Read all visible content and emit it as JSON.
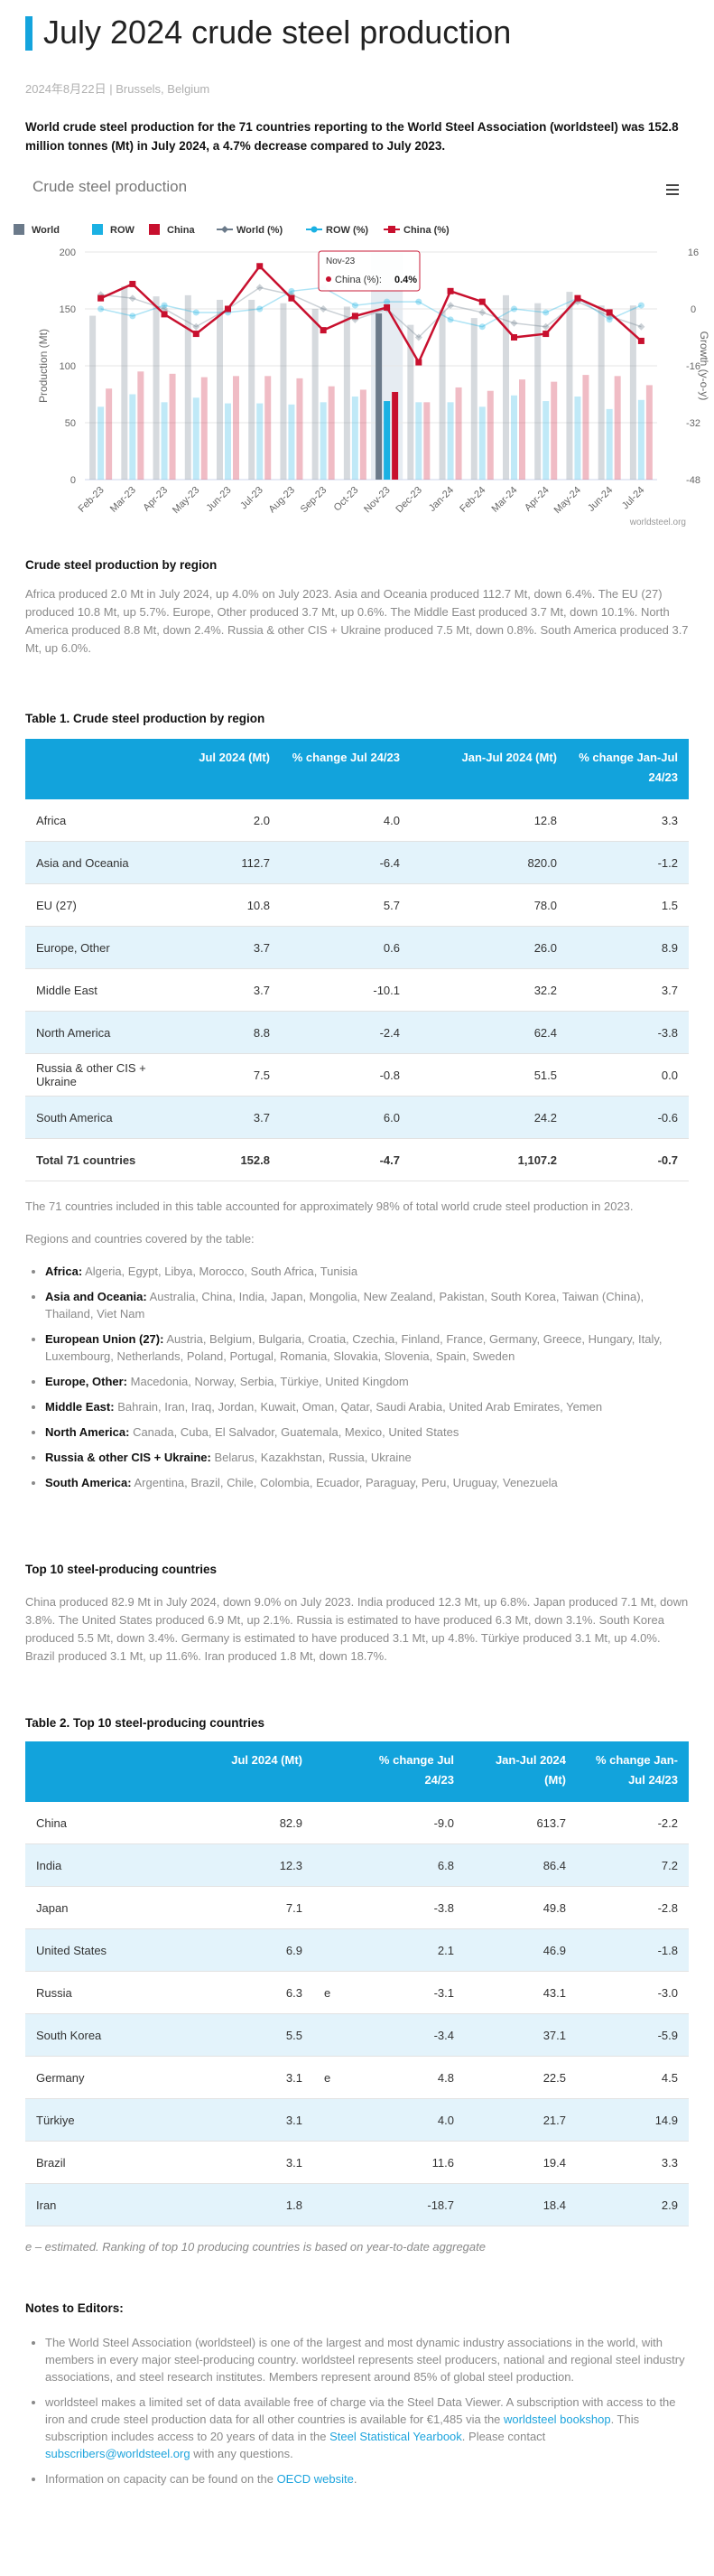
{
  "header": {
    "title": "July 2024 crude steel production",
    "dateline": "2024年8月22日 | Brussels, Belgium"
  },
  "lead": "World crude steel production for the 71 countries reporting to the World Steel Association (worldsteel) was 152.8 million tonnes (Mt) in July 2024, a 4.7% decrease compared to July 2023.",
  "chart_data": {
    "type": "bar",
    "title": "Crude steel production",
    "y_label": "Production (Mt)",
    "y2_label": "Growth (y-o-y)",
    "credit": "worldsteel.org",
    "grid": true,
    "categories": [
      "Feb-23",
      "Mar-23",
      "Apr-23",
      "May-23",
      "Jun-23",
      "Jul-23",
      "Aug-23",
      "Sep-23",
      "Oct-23",
      "Nov-23",
      "Dec-23",
      "Jan-24",
      "Feb-24",
      "Mar-24",
      "Apr-24",
      "May-24",
      "Jun-24",
      "Jul-24"
    ],
    "ylim": [
      0,
      200
    ],
    "yticks": [
      0,
      50,
      100,
      150,
      200
    ],
    "y2lim": [
      -48,
      16
    ],
    "y2ticks": [
      16,
      0,
      -16,
      -32,
      -48
    ],
    "series": [
      {
        "name": "World",
        "type": "bar",
        "color": "#6b7a8a",
        "values": [
          144,
          170,
          161,
          162,
          158,
          158,
          155,
          150,
          152,
          146,
          136,
          149,
          142,
          162,
          155,
          165,
          153,
          153
        ]
      },
      {
        "name": "ROW",
        "type": "bar",
        "color": "#1bb1e3",
        "values": [
          64,
          75,
          68,
          72,
          67,
          67,
          66,
          68,
          73,
          69,
          68,
          68,
          64,
          74,
          69,
          73,
          62,
          70
        ]
      },
      {
        "name": "China",
        "type": "bar",
        "color": "#c8102e",
        "values": [
          80,
          95,
          93,
          90,
          91,
          91,
          89,
          82,
          79,
          77,
          68,
          81,
          78,
          88,
          86,
          92,
          91,
          83
        ]
      },
      {
        "name": "World (%)",
        "type": "line",
        "axis": "y2",
        "marker": "diamond",
        "color": "#6b7a8a",
        "values": [
          4,
          3,
          0,
          -5,
          0,
          6,
          4,
          0,
          -3,
          0,
          -8,
          1,
          -1,
          -4,
          -5,
          2,
          -2,
          -5
        ]
      },
      {
        "name": "ROW (%)",
        "type": "line",
        "axis": "y2",
        "marker": "circle",
        "color": "#1bb1e3",
        "values": [
          0,
          -2,
          1,
          -1,
          -1,
          0,
          5,
          6,
          1,
          2,
          2,
          -3,
          -5,
          0,
          -1,
          3,
          -3,
          1
        ]
      },
      {
        "name": "China (%)",
        "type": "line",
        "axis": "y2",
        "marker": "square",
        "color": "#c8102e",
        "values": [
          3,
          7,
          -1.5,
          -7,
          0,
          12,
          3,
          -6,
          -2,
          0.4,
          -15,
          5,
          2,
          -8,
          -7,
          3,
          -1,
          -9
        ]
      }
    ],
    "tooltip": {
      "category": "Nov-23",
      "series": "China (%):",
      "value": "0.4%"
    }
  },
  "region_heading": "Crude steel production by region",
  "region_text": "Africa produced 2.0 Mt in July 2024, up 4.0% on July 2023. Asia and Oceania produced 112.7 Mt, down 6.4%. The EU (27) produced 10.8 Mt, up 5.7%. Europe, Other produced 3.7 Mt, up 0.6%. The Middle East produced 3.7 Mt, down 10.1%. North America produced 8.8 Mt, down 2.4%. Russia & other CIS + Ukraine produced 7.5 Mt, down 0.8%. South America produced 3.7 Mt, up 6.0%.",
  "table1": {
    "title": "Table 1. Crude steel production by region",
    "columns": [
      "Jul 2024 (Mt)",
      "% change Jul 24/23",
      "Jan-Jul 2024 (Mt)",
      "% change Jan-Jul 24/23"
    ],
    "rows": [
      [
        "Africa",
        "2.0",
        "4.0",
        "12.8",
        "3.3"
      ],
      [
        "Asia and Oceania",
        "112.7",
        "-6.4",
        "820.0",
        "-1.2"
      ],
      [
        "EU (27)",
        "10.8",
        "5.7",
        "78.0",
        "1.5"
      ],
      [
        "Europe, Other",
        "3.7",
        "0.6",
        "26.0",
        "8.9"
      ],
      [
        "Middle East",
        "3.7",
        "-10.1",
        "32.2",
        "3.7"
      ],
      [
        "North America",
        "8.8",
        "-2.4",
        "62.4",
        "-3.8"
      ],
      [
        "Russia & other CIS + Ukraine",
        "7.5",
        "-0.8",
        "51.5",
        "0.0"
      ],
      [
        "South America",
        "3.7",
        "6.0",
        "24.2",
        "-0.6"
      ],
      [
        "Total 71 countries",
        "152.8",
        "-4.7",
        "1,107.2",
        "-0.7"
      ]
    ]
  },
  "coverage_text": "The 71 countries included in this table accounted for approximately 98% of total world crude steel production in 2023.",
  "regions_intro": "Regions and countries covered by the table:",
  "regions": [
    {
      "name": "Africa:",
      "text": "Algeria, Egypt, Libya, Morocco, South Africa, Tunisia"
    },
    {
      "name": "Asia and Oceania:",
      "text": "Australia, China, India, Japan, Mongolia, New Zealand, Pakistan, South Korea, Taiwan (China), Thailand, Viet Nam"
    },
    {
      "name": "European Union (27):",
      "text": "Austria, Belgium, Bulgaria, Croatia, Czechia, Finland, France, Germany, Greece, Hungary, Italy, Luxembourg, Netherlands, Poland, Portugal, Romania, Slovakia, Slovenia, Spain, Sweden"
    },
    {
      "name": "Europe, Other:",
      "text": "Macedonia, Norway, Serbia, Türkiye, United Kingdom"
    },
    {
      "name": "Middle East:",
      "text": "Bahrain, Iran, Iraq, Jordan, Kuwait, Oman, Qatar, Saudi Arabia, United Arab Emirates, Yemen"
    },
    {
      "name": "North America:",
      "text": "Canada, Cuba, El Salvador, Guatemala, Mexico, United States"
    },
    {
      "name": "Russia & other CIS + Ukraine:",
      "text": "Belarus, Kazakhstan, Russia, Ukraine"
    },
    {
      "name": "South America:",
      "text": "Argentina, Brazil, Chile, Colombia, Ecuador, Paraguay, Peru, Uruguay, Venezuela"
    }
  ],
  "top10_heading": "Top 10 steel-producing countries",
  "top10_text": "China produced 82.9 Mt in July 2024, down 9.0% on July 2023. India produced 12.3 Mt, up 6.8%. Japan produced 7.1 Mt, down 3.8%. The United States produced 6.9 Mt, up 2.1%. Russia is estimated to have produced 6.3 Mt, down 3.1%. South Korea produced 5.5 Mt, down 3.4%. Germany is estimated to have produced 3.1 Mt, up 4.8%. Türkiye produced 3.1 Mt, up 4.0%. Brazil produced 3.1 Mt, up 11.6%. Iran produced 1.8 Mt, down 18.7%.",
  "table2": {
    "title": "Table 2. Top 10 steel-producing countries",
    "columns": [
      "Jul 2024 (Mt)",
      "% change Jul 24/23",
      "Jan-Jul 2024 (Mt)",
      "% change Jan-Jul 24/23"
    ],
    "rows": [
      {
        "country": "China",
        "jul": "82.9",
        "change": "-9.0",
        "ytd": "613.7",
        "ytd_change": "-2.2"
      },
      {
        "country": "India",
        "jul": "12.3",
        "change": "6.8",
        "ytd": "86.4",
        "ytd_change": "7.2"
      },
      {
        "country": "Japan",
        "jul": "7.1",
        "change": "-3.8",
        "ytd": "49.8",
        "ytd_change": "-2.8"
      },
      {
        "country": "United States",
        "jul": "6.9",
        "change": "2.1",
        "ytd": "46.9",
        "ytd_change": "-1.8"
      },
      {
        "country": "Russia",
        "jul": "6.3",
        "est": "e",
        "change": "-3.1",
        "ytd": "43.1",
        "ytd_change": "-3.0"
      },
      {
        "country": "South Korea",
        "jul": "5.5",
        "change": "-3.4",
        "ytd": "37.1",
        "ytd_change": "-5.9"
      },
      {
        "country": "Germany",
        "jul": "3.1",
        "est": "e",
        "change": "4.8",
        "ytd": "22.5",
        "ytd_change": "4.5"
      },
      {
        "country": "Türkiye",
        "jul": "3.1",
        "change": "4.0",
        "ytd": "21.7",
        "ytd_change": "14.9"
      },
      {
        "country": "Brazil",
        "jul": "3.1",
        "change": "11.6",
        "ytd": "19.4",
        "ytd_change": "3.3"
      },
      {
        "country": "Iran",
        "jul": "1.8",
        "change": "-18.7",
        "ytd": "18.4",
        "ytd_change": "2.9"
      }
    ],
    "note": "e – estimated. Ranking of top 10 producing countries is based on year-to-date aggregate"
  },
  "notes_heading": "Notes to Editors:",
  "notes": [
    {
      "parts": [
        {
          "text": "The World Steel Association (worldsteel) is one of the largest and most dynamic industry associations in the world, with members in every major steel-producing country. worldsteel represents steel producers, national and regional steel industry associations, and steel research institutes. Members represent around 85% of global steel production."
        }
      ]
    },
    {
      "parts": [
        {
          "text": "worldsteel makes a limited set of data available free of charge via the Steel Data Viewer. A subscription with access to the iron and crude steel production data for all other countries is available for €1,485  via the "
        },
        {
          "link": "worldsteel bookshop"
        },
        {
          "text": ". This subscription includes access to 20 years of data in the "
        },
        {
          "link": "Steel Statistical Yearbook"
        },
        {
          "text": ". Please contact "
        },
        {
          "link": "subscribers@worldsteel.org"
        },
        {
          "text": " with any questions."
        }
      ]
    },
    {
      "parts": [
        {
          "text": "Information on capacity can be found on the "
        },
        {
          "link": "OECD website"
        },
        {
          "text": "."
        }
      ]
    }
  ]
}
